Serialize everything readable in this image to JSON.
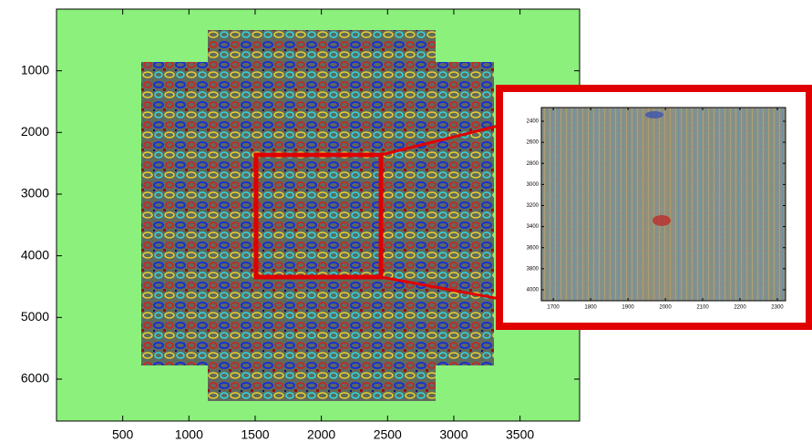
{
  "chart_data": [
    {
      "type": "image",
      "xlim": [
        0,
        3950
      ],
      "xticks": [
        500,
        1000,
        1500,
        2000,
        2500,
        3000,
        3500
      ],
      "ylim": [
        0,
        6680
      ],
      "yticks": [
        1000,
        2000,
        3000,
        4000,
        5000,
        6000
      ],
      "y_reversed": true,
      "background": "#8cf07c"
    },
    {
      "type": "image",
      "xlim": [
        1668,
        2322
      ],
      "xticks": [
        1700,
        1800,
        1900,
        2000,
        2100,
        2200,
        2300
      ],
      "ylim": [
        2270,
        4104
      ],
      "yticks": [
        2400,
        2600,
        2800,
        3000,
        3200,
        3400,
        3600,
        3800,
        4000
      ],
      "y_reversed": true,
      "background": "#8a8f86"
    }
  ]
}
